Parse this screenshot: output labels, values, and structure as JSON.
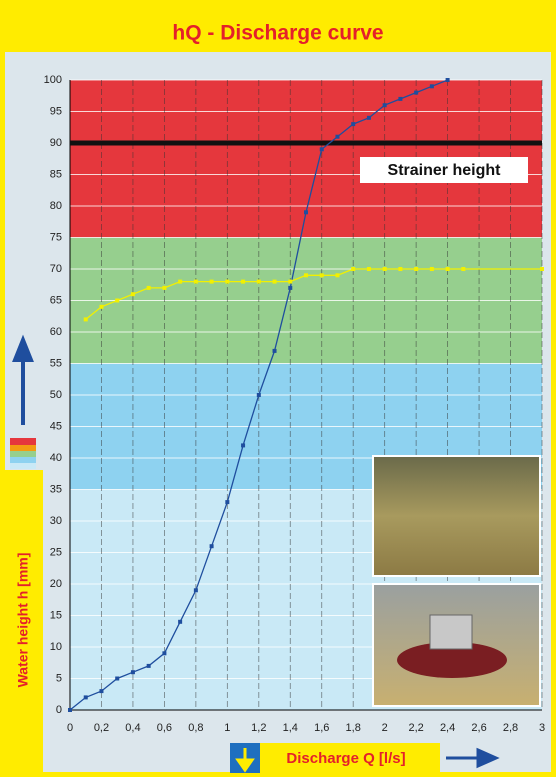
{
  "chart_data": {
    "type": "line",
    "title": "hQ - Discharge curve",
    "x_label": "Discharge Q [l/s]",
    "y_label": "Water height h [mm]",
    "xlim": [
      0,
      3
    ],
    "ylim": [
      0,
      100
    ],
    "xticks": [
      0,
      {
        "value": 0.2,
        "label": "0,2"
      },
      {
        "value": 0.4,
        "label": "0,4"
      },
      {
        "value": 0.6,
        "label": "0,6"
      },
      {
        "value": 0.8,
        "label": "0,8"
      },
      1,
      {
        "value": 1.2,
        "label": "1,2"
      },
      {
        "value": 1.4,
        "label": "1,4"
      },
      {
        "value": 1.6,
        "label": "1,6"
      },
      {
        "value": 1.8,
        "label": "1,8"
      },
      2,
      {
        "value": 2.2,
        "label": "2,2"
      },
      {
        "value": 2.4,
        "label": "2,4"
      },
      {
        "value": 2.6,
        "label": "2,6"
      },
      {
        "value": 2.8,
        "label": "2,8"
      },
      3
    ],
    "yticks": [
      0,
      5,
      10,
      15,
      20,
      25,
      30,
      35,
      40,
      45,
      50,
      55,
      60,
      65,
      70,
      75,
      80,
      85,
      90,
      95,
      100
    ],
    "bands": [
      {
        "from": 0,
        "to": 35,
        "color": "#c9e9f6"
      },
      {
        "from": 35,
        "to": 55,
        "color": "#8ed2f0"
      },
      {
        "from": 55,
        "to": 75,
        "color": "#96cf8e"
      },
      {
        "from": 75,
        "to": 100,
        "color": "#e5373d"
      }
    ],
    "annotations": [
      {
        "text": "Strainer height",
        "y": 90
      }
    ],
    "series": [
      {
        "color": "#1f4e9e",
        "x": [
          0,
          0.1,
          0.2,
          0.3,
          0.4,
          0.5,
          0.6,
          0.7,
          0.8,
          0.9,
          1.0,
          1.1,
          1.2,
          1.3,
          1.4,
          1.5,
          1.6,
          1.7,
          1.8,
          1.9,
          2.0,
          2.1,
          2.2,
          2.3,
          2.4
        ],
        "values": [
          0,
          2,
          3,
          5,
          6,
          7,
          9,
          14,
          19,
          26,
          33,
          42,
          50,
          57,
          67,
          79,
          89,
          91,
          93,
          94,
          96,
          97,
          98,
          99,
          100
        ]
      },
      {
        "color": "#f2f000",
        "x": [
          0.1,
          0.2,
          0.3,
          0.4,
          0.5,
          0.6,
          0.7,
          0.8,
          0.9,
          1.0,
          1.1,
          1.2,
          1.3,
          1.4,
          1.5,
          1.6,
          1.7,
          1.8,
          1.9,
          2.0,
          2.1,
          2.2,
          2.3,
          2.4,
          2.5,
          3.0
        ],
        "values": [
          62,
          64,
          65,
          66,
          67,
          67,
          68,
          68,
          68,
          68,
          68,
          68,
          68,
          68,
          69,
          69,
          69,
          70,
          70,
          70,
          70,
          70,
          70,
          70,
          70,
          70
        ]
      }
    ]
  }
}
